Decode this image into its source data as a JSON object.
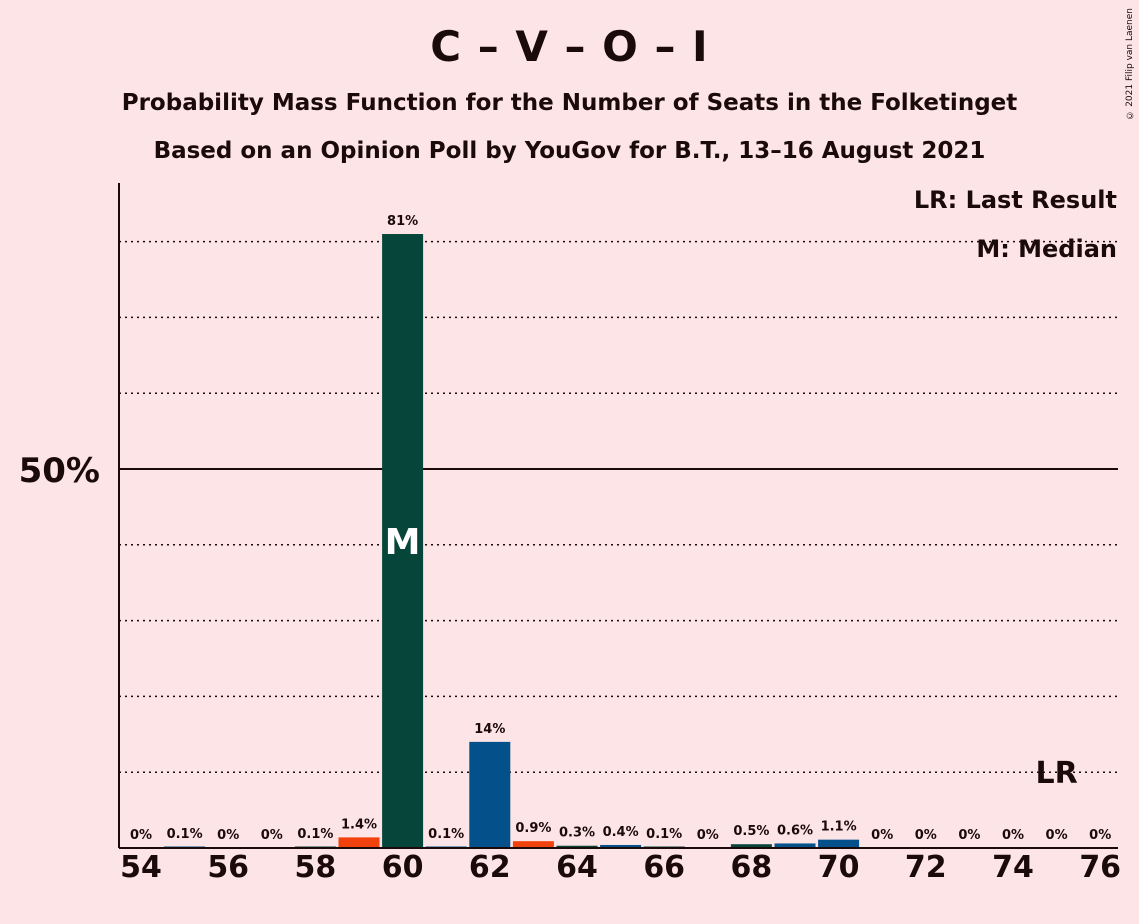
{
  "title": "C – V – O – I",
  "subtitle1": "Probability Mass Function for the Number of Seats in the Folketinget",
  "subtitle2": "Based on an Opinion Poll by YouGov for B.T., 13–16 August 2021",
  "copyright": "© 2021 Filip van Laenen",
  "legend": {
    "last_result": "LR: Last Result",
    "median": "M: Median"
  },
  "colors": {
    "background": "#fde4e6",
    "dark_green": "#06453a",
    "blue": "#04508a",
    "orange": "#f1410c"
  },
  "chart_data": {
    "type": "bar",
    "ylim": [
      0,
      87
    ],
    "y_tick_labels": [
      {
        "value": 50,
        "label": "50%"
      }
    ],
    "gridlines": [
      10,
      20,
      30,
      40,
      60,
      70,
      80
    ],
    "x_tick_labels": [
      54,
      56,
      58,
      60,
      62,
      64,
      66,
      68,
      70,
      72,
      74,
      76
    ],
    "median": 60,
    "median_label": "M",
    "last_result": 75,
    "last_result_label": "LR",
    "bars": [
      {
        "seats": 54,
        "value": 0,
        "label": "0%",
        "color": "#06453a"
      },
      {
        "seats": 55,
        "value": 0.1,
        "label": "0.1%",
        "color": "#04508a"
      },
      {
        "seats": 56,
        "value": 0,
        "label": "0%",
        "color": "#06453a"
      },
      {
        "seats": 57,
        "value": 0,
        "label": "0%",
        "color": "#04508a"
      },
      {
        "seats": 58,
        "value": 0.1,
        "label": "0.1%",
        "color": "#06453a"
      },
      {
        "seats": 59,
        "value": 1.4,
        "label": "1.4%",
        "color": "#f1410c"
      },
      {
        "seats": 60,
        "value": 81,
        "label": "81%",
        "color": "#06453a"
      },
      {
        "seats": 61,
        "value": 0.1,
        "label": "0.1%",
        "color": "#04508a"
      },
      {
        "seats": 62,
        "value": 14,
        "label": "14%",
        "color": "#04508a"
      },
      {
        "seats": 63,
        "value": 0.9,
        "label": "0.9%",
        "color": "#f1410c"
      },
      {
        "seats": 64,
        "value": 0.3,
        "label": "0.3%",
        "color": "#06453a"
      },
      {
        "seats": 65,
        "value": 0.4,
        "label": "0.4%",
        "color": "#04508a"
      },
      {
        "seats": 66,
        "value": 0.1,
        "label": "0.1%",
        "color": "#06453a"
      },
      {
        "seats": 67,
        "value": 0,
        "label": "0%",
        "color": "#04508a"
      },
      {
        "seats": 68,
        "value": 0.5,
        "label": "0.5%",
        "color": "#06453a"
      },
      {
        "seats": 69,
        "value": 0.6,
        "label": "0.6%",
        "color": "#04508a"
      },
      {
        "seats": 70,
        "value": 1.1,
        "label": "1.1%",
        "color": "#04508a"
      },
      {
        "seats": 71,
        "value": 0,
        "label": "0%",
        "color": "#06453a"
      },
      {
        "seats": 72,
        "value": 0,
        "label": "0%",
        "color": "#04508a"
      },
      {
        "seats": 73,
        "value": 0,
        "label": "0%",
        "color": "#06453a"
      },
      {
        "seats": 74,
        "value": 0,
        "label": "0%",
        "color": "#04508a"
      },
      {
        "seats": 75,
        "value": 0,
        "label": "0%",
        "color": "#06453a"
      },
      {
        "seats": 76,
        "value": 0,
        "label": "0%",
        "color": "#04508a"
      }
    ]
  }
}
